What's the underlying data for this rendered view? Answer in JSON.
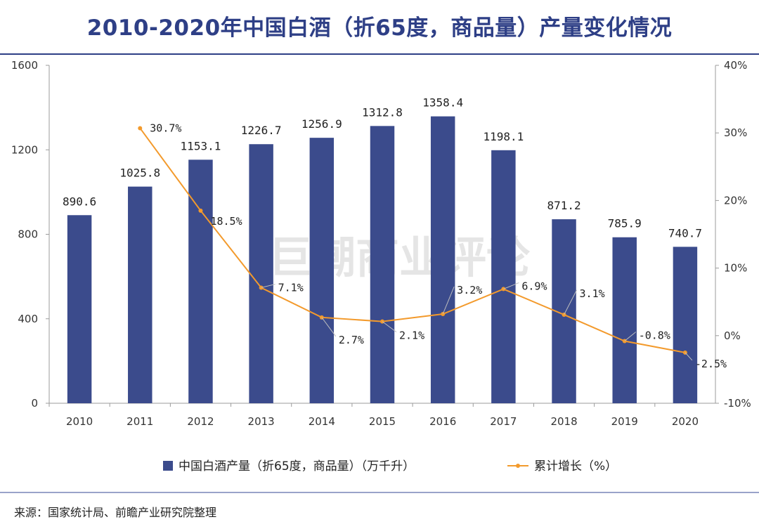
{
  "header": {
    "title": "2010-2020年中国白酒（折65度，商品量）产量变化情况"
  },
  "footer": {
    "source": "来源：国家统计局、前瞻产业研究院整理"
  },
  "watermark": "巨潮商业评论",
  "colors": {
    "bar": "#3b4b8c",
    "line": "#f39a2c",
    "title": "#2e3f86",
    "axis": "#9b9b9b"
  },
  "chart_data": {
    "type": "bar",
    "title": "2010-2020年中国白酒（折65度，商品量）产量变化情况",
    "categories": [
      "2010",
      "2011",
      "2012",
      "2013",
      "2014",
      "2015",
      "2016",
      "2017",
      "2018",
      "2019",
      "2020"
    ],
    "series": [
      {
        "name": "中国白酒产量（折65度，商品量）（万千升）",
        "type": "bar",
        "axis": "left",
        "values": [
          890.6,
          1025.8,
          1153.1,
          1226.7,
          1256.9,
          1312.8,
          1358.4,
          1198.1,
          871.2,
          785.9,
          740.7
        ],
        "labels": [
          "890.6",
          "1025.8",
          "1153.1",
          "1226.7",
          "1256.9",
          "1312.8",
          "1358.4",
          "1198.1",
          "871.2",
          "785.9",
          "740.7"
        ]
      },
      {
        "name": "累计增长（%）",
        "type": "line",
        "axis": "right",
        "values": [
          null,
          30.7,
          18.5,
          7.1,
          2.7,
          2.1,
          3.2,
          6.9,
          3.1,
          -0.8,
          -2.5
        ],
        "labels": [
          "",
          "30.7%",
          "18.5%",
          "7.1%",
          "2.7%",
          "2.1%",
          "3.2%",
          "6.9%",
          "3.1%",
          "-0.8%",
          "-2.5%"
        ]
      }
    ],
    "ylim_left": [
      0,
      1600
    ],
    "yticks_left": [
      "0",
      "400",
      "800",
      "1200",
      "1600"
    ],
    "ylim_right": [
      -10,
      40
    ],
    "yticks_right": [
      "-10%",
      "0%",
      "10%",
      "20%",
      "30%",
      "40%"
    ],
    "xlabel": "",
    "ylabel": "",
    "grid": false,
    "legend": "bottom"
  }
}
